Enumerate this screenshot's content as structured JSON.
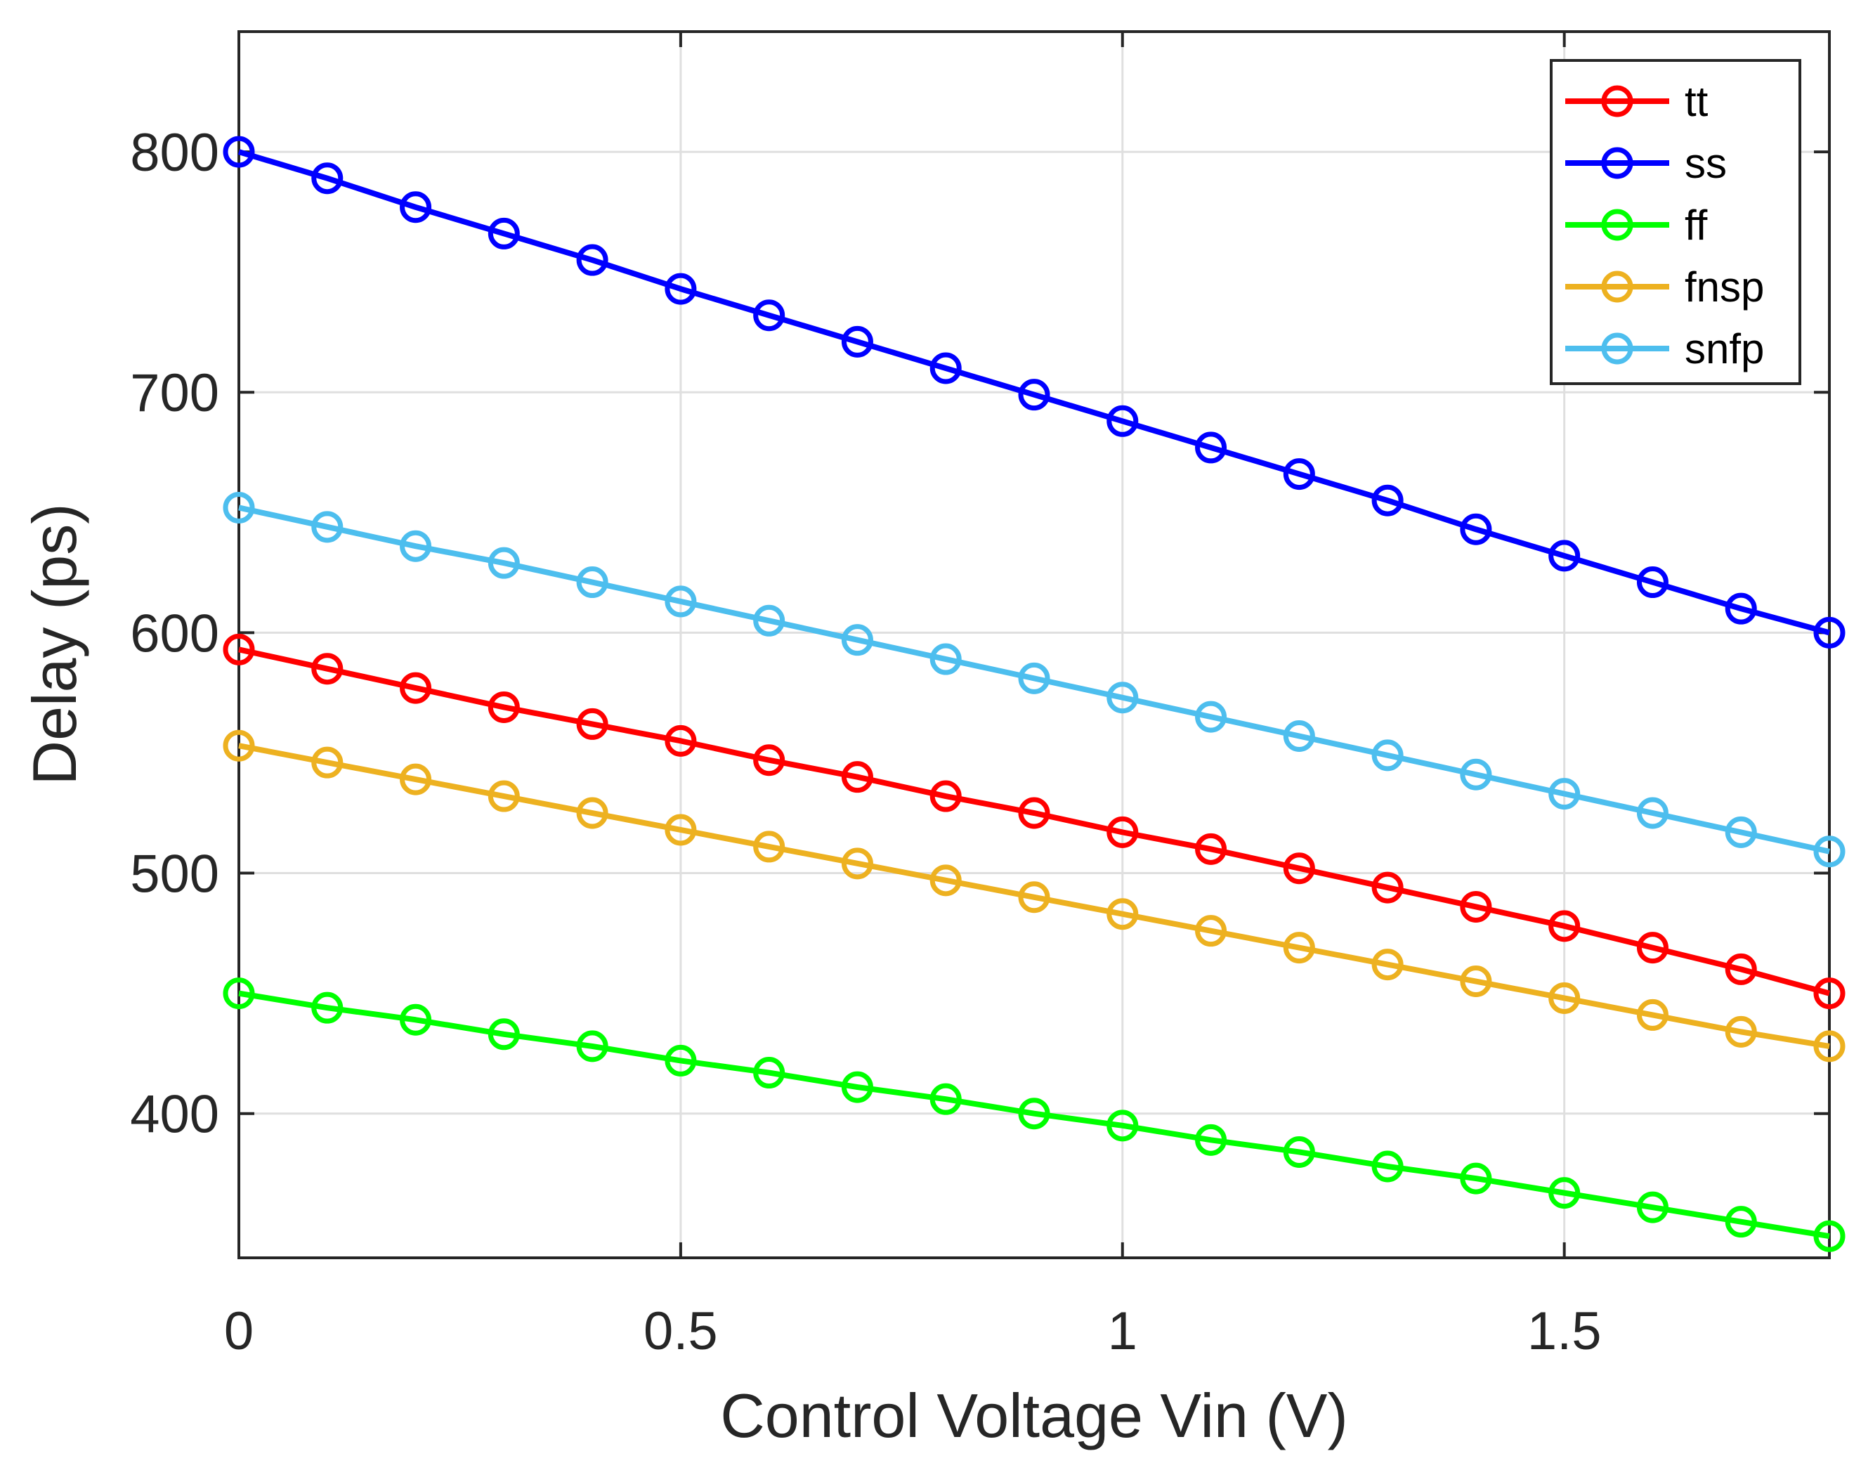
{
  "chart_data": {
    "type": "line",
    "title": "",
    "xlabel": "Control Voltage Vin (V)",
    "ylabel": "Delay (ps)",
    "xlim": [
      0,
      1.8
    ],
    "ylim": [
      340,
      850
    ],
    "xticks": [
      0,
      0.5,
      1,
      1.5
    ],
    "xtick_labels": [
      "0",
      "0.5",
      "1",
      "1.5"
    ],
    "yticks": [
      400,
      500,
      600,
      700,
      800
    ],
    "ytick_labels": [
      "400",
      "500",
      "600",
      "700",
      "800"
    ],
    "grid": true,
    "legend_position": "top-right",
    "marker": "circle",
    "x": [
      0,
      0.1,
      0.2,
      0.3,
      0.4,
      0.5,
      0.6,
      0.7,
      0.8,
      0.9,
      1.0,
      1.1,
      1.2,
      1.3,
      1.4,
      1.5,
      1.6,
      1.7,
      1.8
    ],
    "series": [
      {
        "name": "tt",
        "color": "#ff0000",
        "values": [
          593,
          585,
          577,
          569,
          562,
          555,
          547,
          540,
          532,
          525,
          517,
          510,
          502,
          494,
          486,
          478,
          469,
          460,
          450
        ]
      },
      {
        "name": "ss",
        "color": "#0000ff",
        "values": [
          800,
          789,
          777,
          766,
          755,
          743,
          732,
          721,
          710,
          699,
          688,
          677,
          666,
          655,
          643,
          632,
          621,
          610,
          600
        ]
      },
      {
        "name": "ff",
        "color": "#00ff00",
        "values": [
          450,
          444,
          439,
          433,
          428,
          422,
          417,
          411,
          406,
          400,
          395,
          389,
          384,
          378,
          373,
          367,
          361,
          355,
          349
        ]
      },
      {
        "name": "fnsp",
        "color": "#edb120",
        "values": [
          553,
          546,
          539,
          532,
          525,
          518,
          511,
          504,
          497,
          490,
          483,
          476,
          469,
          462,
          455,
          448,
          441,
          434,
          428
        ]
      },
      {
        "name": "snfp",
        "color": "#4dbeee",
        "values": [
          652,
          644,
          636,
          629,
          621,
          613,
          605,
          597,
          589,
          581,
          573,
          565,
          557,
          549,
          541,
          533,
          525,
          517,
          509
        ]
      }
    ]
  }
}
